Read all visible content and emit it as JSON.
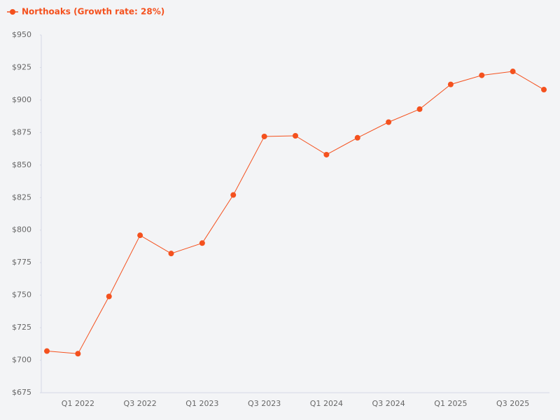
{
  "chart_data": {
    "type": "line",
    "categories": [
      null,
      "Q1 2022",
      null,
      "Q3 2022",
      null,
      "Q1 2023",
      null,
      "Q3 2023",
      null,
      "Q1 2024",
      null,
      "Q3 2024",
      null,
      "Q1 2025",
      null,
      "Q3 2025",
      null
    ],
    "series": [
      {
        "name": "Northoaks (Growth rate: 28%)",
        "color": "#f4511e",
        "values": [
          707,
          705,
          749,
          796,
          782,
          790,
          827,
          872,
          872.5,
          858,
          871,
          883,
          893,
          912,
          919,
          922,
          908
        ]
      }
    ],
    "ylim": [
      675,
      950
    ],
    "yticks": [
      {
        "value": 675,
        "label": "$675"
      },
      {
        "value": 700,
        "label": "$700"
      },
      {
        "value": 725,
        "label": "$725"
      },
      {
        "value": 750,
        "label": "$750"
      },
      {
        "value": 775,
        "label": "$775"
      },
      {
        "value": 800,
        "label": "$800"
      },
      {
        "value": 825,
        "label": "$825"
      },
      {
        "value": 850,
        "label": "$850"
      },
      {
        "value": 875,
        "label": "$875"
      },
      {
        "value": 900,
        "label": "$900"
      },
      {
        "value": 925,
        "label": "$925"
      },
      {
        "value": 950,
        "label": "$950"
      }
    ],
    "legend": "top-left"
  }
}
